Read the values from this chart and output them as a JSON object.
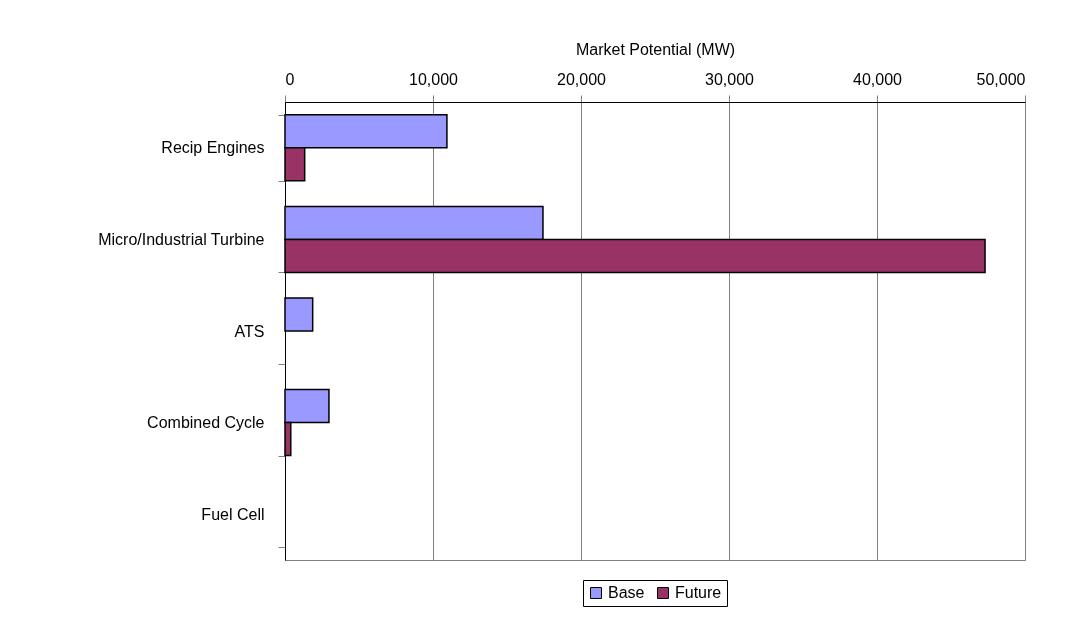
{
  "chart_data": {
    "type": "bar",
    "orientation": "horizontal",
    "xlabel": "Market Potential (MW)",
    "categories": [
      "Recip Engines",
      "Micro/Industrial Turbine",
      "ATS",
      "Combined Cycle",
      "Fuel Cell"
    ],
    "series": [
      {
        "name": "Base",
        "color": "#9999ff",
        "values": [
          10940,
          17430,
          1870,
          2970,
          null
        ]
      },
      {
        "name": "Future",
        "color": "#993366",
        "values": [
          1330,
          47300,
          null,
          390,
          null
        ]
      }
    ],
    "xlim": [
      0,
      50000
    ],
    "xticks": [
      0,
      {
        "value": 10000,
        "label": "10,000"
      },
      {
        "value": 20000,
        "label": "20,000"
      },
      {
        "value": 30000,
        "label": "30,000"
      },
      {
        "value": 40000,
        "label": "40,000"
      },
      {
        "value": 50000,
        "label": "50,000"
      }
    ],
    "grid": "x",
    "legend": "bottom"
  }
}
